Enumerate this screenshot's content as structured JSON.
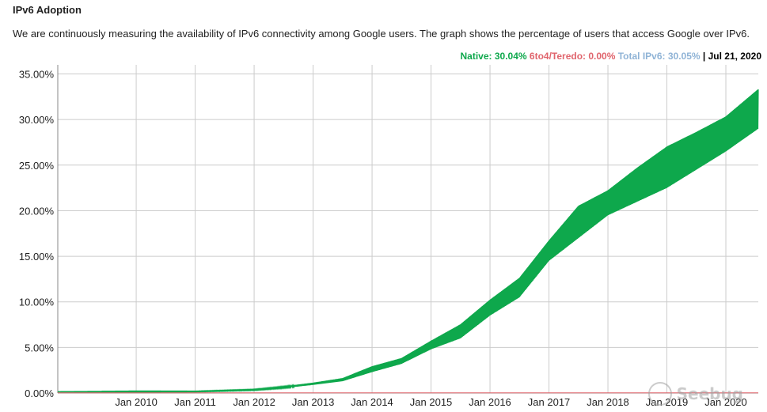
{
  "header": {
    "title": "IPv6 Adoption",
    "description": "We are continuously measuring the availability of IPv6 connectivity among Google users. The graph shows the percentage of users that access Google over IPv6."
  },
  "legend": {
    "native": "Native: 30.04%",
    "teredo": "6to4/Teredo: 0.00%",
    "total": "Total IPv6: 30.05%",
    "separator": "|",
    "date": "Jul 21, 2020"
  },
  "colors": {
    "native": "#0ea84c",
    "teredo": "#e0646c",
    "total": "#8fb3d6",
    "grid": "#cccccc"
  },
  "watermark": "Seebug",
  "chart_data": {
    "type": "area",
    "title": "",
    "xlabel": "",
    "ylabel": "",
    "ylim": [
      0,
      36
    ],
    "y_ticks": [
      "35.00%",
      "30.00%",
      "25.00%",
      "20.00%",
      "15.00%",
      "10.00%",
      "5.00%",
      "0.00%"
    ],
    "y_tick_values": [
      35,
      30,
      25,
      20,
      15,
      10,
      5,
      0
    ],
    "x_ticks": [
      "Jan 2010",
      "Jan 2011",
      "Jan 2012",
      "Jan 2013",
      "Jan 2014",
      "Jan 2015",
      "Jan 2016",
      "Jan 2017",
      "Jan 2018",
      "Jan 2019",
      "Jan 2020"
    ],
    "x_tick_years": [
      2010,
      2011,
      2012,
      2013,
      2014,
      2015,
      2016,
      2017,
      2018,
      2019,
      2020
    ],
    "xlim": [
      2008.67,
      2020.55
    ],
    "grid": true,
    "series": [
      {
        "name": "Native",
        "x": [
          2008.67,
          2010.0,
          2011.0,
          2012.0,
          2012.5,
          2013.0,
          2013.5,
          2014.0,
          2014.5,
          2015.0,
          2015.5,
          2016.0,
          2016.5,
          2017.0,
          2017.5,
          2018.0,
          2018.5,
          2019.0,
          2019.5,
          2020.0,
          2020.55
        ],
        "low": [
          0.1,
          0.1,
          0.12,
          0.3,
          0.55,
          0.9,
          1.3,
          2.3,
          3.2,
          4.8,
          6.0,
          8.5,
          10.5,
          14.5,
          17.0,
          19.5,
          21.0,
          22.5,
          24.5,
          26.5,
          29.0
        ],
        "high": [
          0.15,
          0.2,
          0.2,
          0.4,
          0.7,
          1.1,
          1.6,
          2.9,
          3.8,
          5.7,
          7.5,
          10.2,
          12.6,
          16.7,
          20.5,
          22.2,
          24.7,
          27.0,
          28.6,
          30.3,
          33.3
        ]
      },
      {
        "name": "6to4/Teredo",
        "x": [
          2008.67,
          2020.55
        ],
        "low": [
          0.0,
          0.0
        ],
        "high": [
          0.02,
          0.02
        ]
      }
    ]
  }
}
